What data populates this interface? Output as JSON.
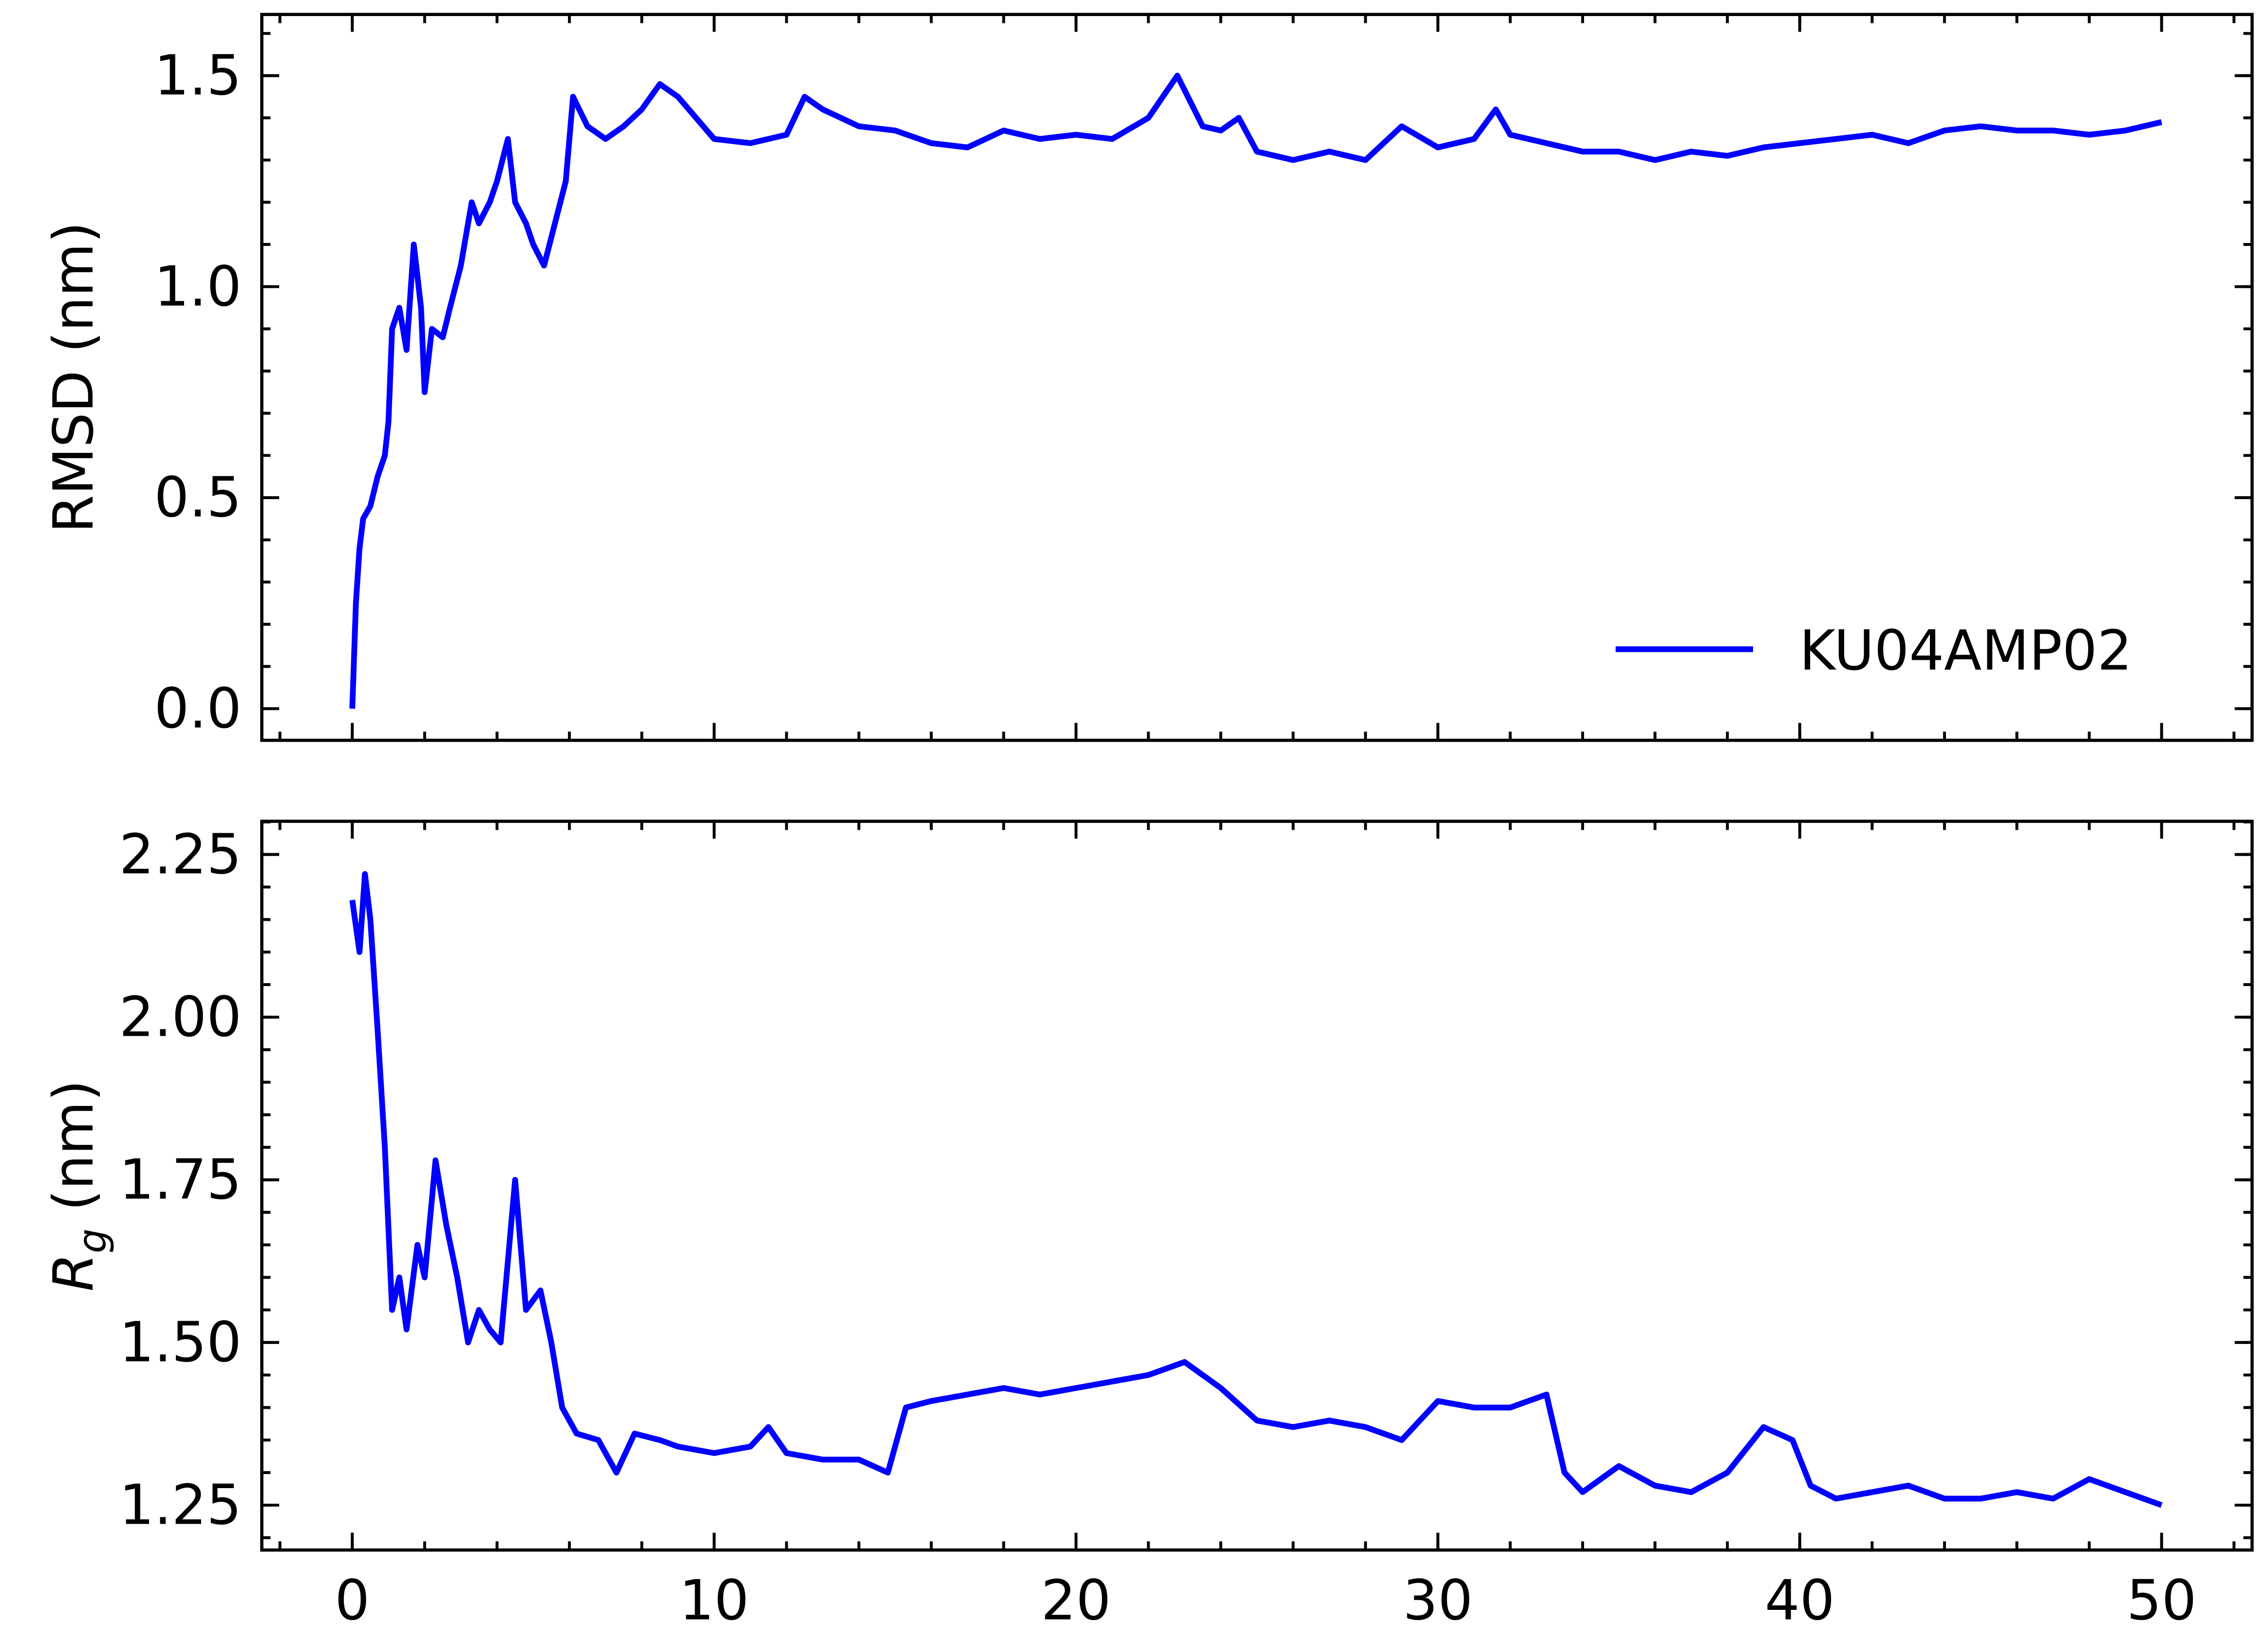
{
  "chart_data": [
    {
      "type": "line",
      "ylabel": "RMSD (nm)",
      "legend": "lower right",
      "xlim": [
        -2.5,
        52.5
      ],
      "ylim": [
        -0.075,
        1.645
      ],
      "yticks": [
        {
          "value": 0,
          "label": "0.0"
        },
        0.5,
        {
          "value": 1,
          "label": "1.0"
        },
        1.5
      ],
      "x": [
        0,
        0.1,
        0.2,
        0.3,
        0.5,
        0.7,
        0.9,
        1.0,
        1.1,
        1.3,
        1.5,
        1.7,
        1.9,
        2.0,
        2.2,
        2.5,
        2.7,
        3.0,
        3.3,
        3.5,
        3.8,
        4.0,
        4.3,
        4.5,
        4.8,
        5.0,
        5.3,
        5.6,
        5.9,
        6.1,
        6.5,
        7,
        7.5,
        8,
        8.5,
        9,
        9.5,
        10,
        11,
        12,
        12.5,
        13,
        14,
        15,
        16,
        17,
        18,
        19,
        20,
        21,
        22,
        22.8,
        23.5,
        24,
        24.5,
        25,
        26,
        27,
        28,
        29,
        30,
        31,
        31.6,
        32,
        33,
        34,
        35,
        36,
        37,
        38,
        39,
        40,
        41,
        42,
        43,
        44,
        45,
        46,
        47,
        48,
        49,
        50
      ],
      "series": [
        {
          "name": "KU04AMP02",
          "color": "#0000ff",
          "values": [
            0,
            0.25,
            0.38,
            0.45,
            0.48,
            0.55,
            0.6,
            0.68,
            0.9,
            0.95,
            0.85,
            1.1,
            0.95,
            0.75,
            0.9,
            0.88,
            0.95,
            1.05,
            1.2,
            1.15,
            1.2,
            1.25,
            1.35,
            1.2,
            1.15,
            1.1,
            1.05,
            1.15,
            1.25,
            1.45,
            1.38,
            1.35,
            1.38,
            1.42,
            1.48,
            1.45,
            1.4,
            1.35,
            1.34,
            1.36,
            1.45,
            1.42,
            1.38,
            1.37,
            1.34,
            1.33,
            1.37,
            1.35,
            1.36,
            1.35,
            1.4,
            1.5,
            1.38,
            1.37,
            1.4,
            1.32,
            1.3,
            1.32,
            1.3,
            1.38,
            1.33,
            1.35,
            1.42,
            1.36,
            1.34,
            1.32,
            1.32,
            1.3,
            1.32,
            1.31,
            1.33,
            1.34,
            1.35,
            1.36,
            1.34,
            1.37,
            1.38,
            1.37,
            1.37,
            1.36,
            1.37,
            1.39
          ]
        }
      ]
    },
    {
      "type": "line",
      "ylabel": {
        "symbol": "R",
        "subscript": "g",
        "unit": "(nm)"
      },
      "xlim": [
        -2.5,
        52.5
      ],
      "ylim": [
        1.181,
        2.301
      ],
      "xticks": [
        0,
        10,
        20,
        30,
        40,
        50
      ],
      "yticks": [
        1.25,
        {
          "value": 1.5,
          "label": "1.50"
        },
        1.75,
        {
          "value": 2,
          "label": "2.00"
        },
        2.25
      ],
      "x": [
        0,
        0.2,
        0.35,
        0.5,
        0.7,
        0.9,
        1.1,
        1.3,
        1.5,
        1.8,
        2.0,
        2.3,
        2.6,
        2.9,
        3.2,
        3.5,
        3.8,
        4.1,
        4.5,
        4.8,
        5.2,
        5.5,
        5.8,
        6.2,
        6.8,
        7.3,
        7.8,
        8.5,
        9,
        10,
        11,
        11.5,
        12,
        13,
        14,
        14.8,
        15.3,
        16,
        17,
        18,
        19,
        20,
        21,
        22,
        23,
        24,
        25,
        26,
        27,
        28,
        29,
        30,
        31,
        32,
        33,
        33.5,
        34,
        35,
        36,
        37,
        38,
        39,
        39.8,
        40.3,
        41,
        42,
        43,
        44,
        45,
        46,
        47,
        48,
        49,
        50
      ],
      "series": [
        {
          "color": "#0000ff",
          "values": [
            2.18,
            2.1,
            2.22,
            2.15,
            1.98,
            1.8,
            1.55,
            1.6,
            1.52,
            1.65,
            1.6,
            1.78,
            1.68,
            1.6,
            1.5,
            1.55,
            1.52,
            1.5,
            1.75,
            1.55,
            1.58,
            1.5,
            1.4,
            1.36,
            1.35,
            1.3,
            1.36,
            1.35,
            1.34,
            1.33,
            1.34,
            1.37,
            1.33,
            1.32,
            1.32,
            1.3,
            1.4,
            1.41,
            1.42,
            1.43,
            1.42,
            1.43,
            1.44,
            1.45,
            1.47,
            1.43,
            1.38,
            1.37,
            1.38,
            1.37,
            1.35,
            1.41,
            1.4,
            1.4,
            1.42,
            1.3,
            1.27,
            1.31,
            1.28,
            1.27,
            1.3,
            1.37,
            1.35,
            1.28,
            1.26,
            1.27,
            1.28,
            1.26,
            1.26,
            1.27,
            1.26,
            1.29,
            1.27,
            1.25
          ]
        }
      ]
    }
  ]
}
